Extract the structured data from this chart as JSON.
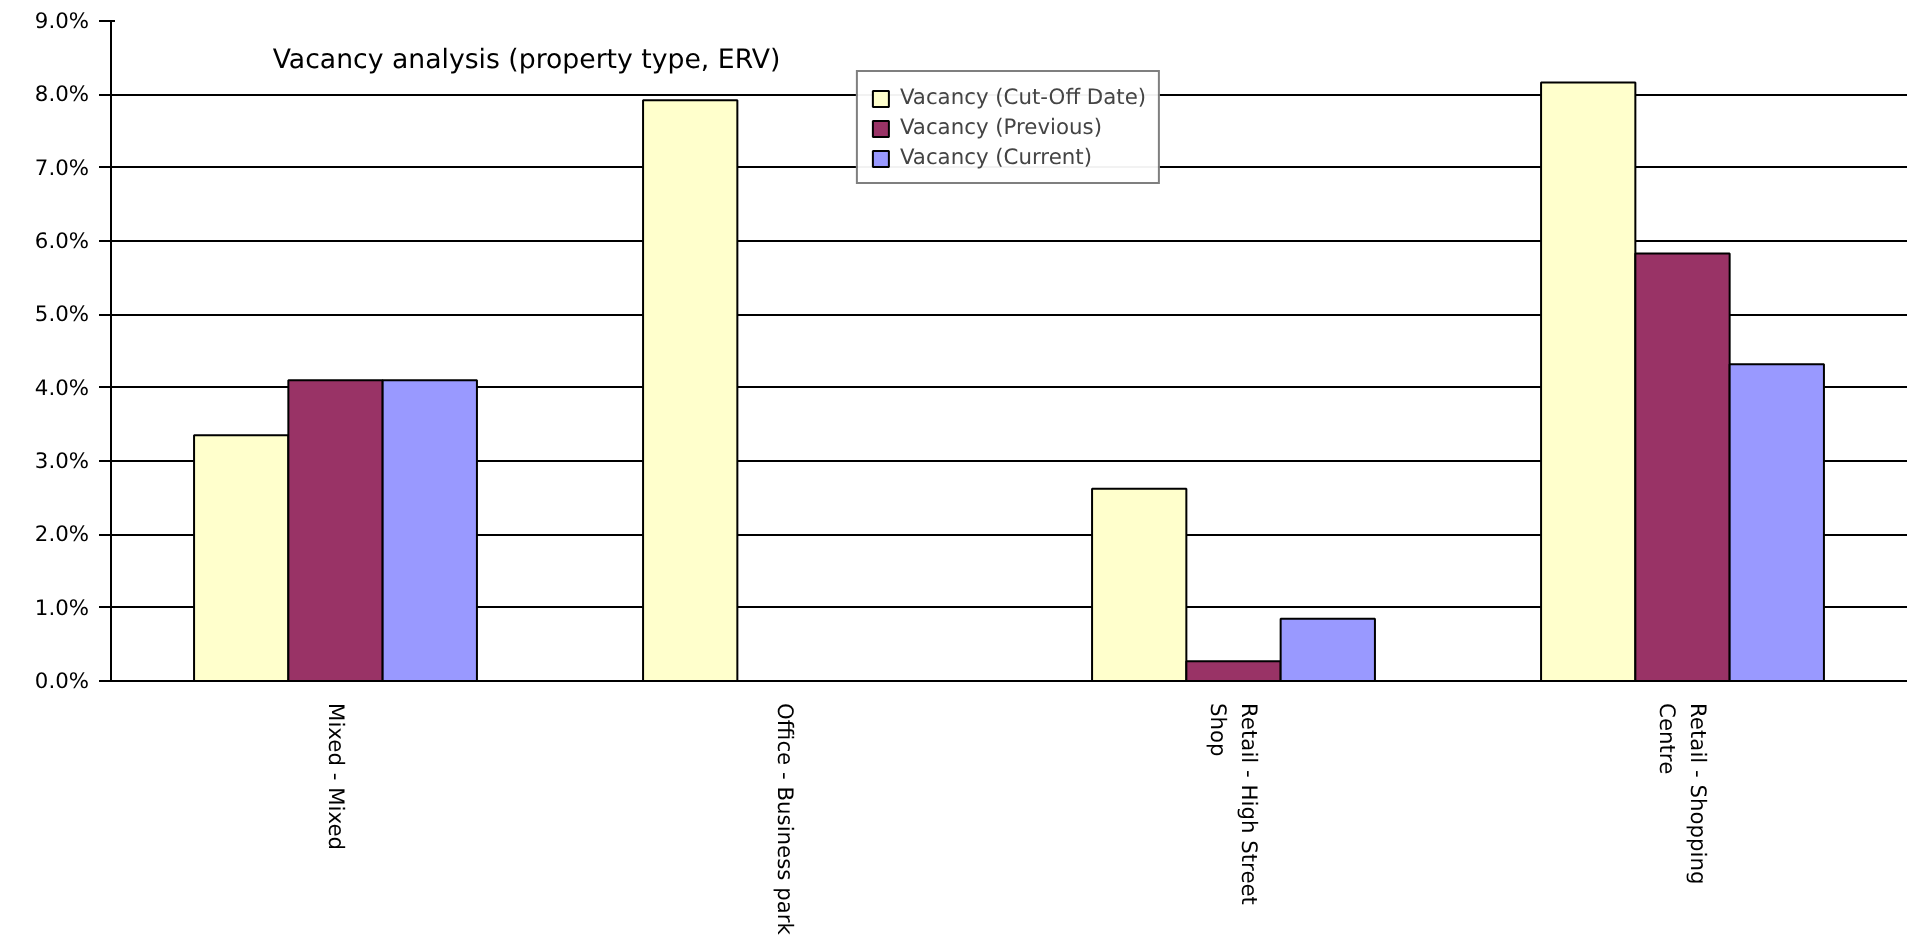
{
  "chart_data": {
    "type": "bar",
    "title": "Vacancy analysis (property type, ERV)",
    "categories": [
      "Mixed - Mixed",
      "Office - Business park",
      "Retail - High Street Shop",
      "Retail - Shopping Centre"
    ],
    "series": [
      {
        "name": "Vacancy (Cut-Off Date)",
        "color": "#ffffcc",
        "values": [
          3.35,
          7.92,
          2.62,
          8.16
        ]
      },
      {
        "name": "Vacancy (Previous)",
        "color": "#993366",
        "values": [
          4.1,
          null,
          0.27,
          5.83
        ]
      },
      {
        "name": "Vacancy (Current)",
        "color": "#9999ff",
        "values": [
          4.1,
          null,
          0.85,
          4.32
        ]
      }
    ],
    "ylim": [
      0,
      9
    ],
    "yticks": [
      {
        "value": 0,
        "label": "0.0%"
      },
      {
        "value": 1,
        "label": "1.0%"
      },
      {
        "value": 2,
        "label": "2.0%"
      },
      {
        "value": 3,
        "label": "3.0%"
      },
      {
        "value": 4,
        "label": "4.0%"
      },
      {
        "value": 5,
        "label": "5.0%"
      },
      {
        "value": 6,
        "label": "6.0%"
      },
      {
        "value": 7,
        "label": "7.0%"
      },
      {
        "value": 8,
        "label": "8.0%"
      },
      {
        "value": 9,
        "label": "9.0%"
      }
    ],
    "grid": "y",
    "legend": "top"
  }
}
